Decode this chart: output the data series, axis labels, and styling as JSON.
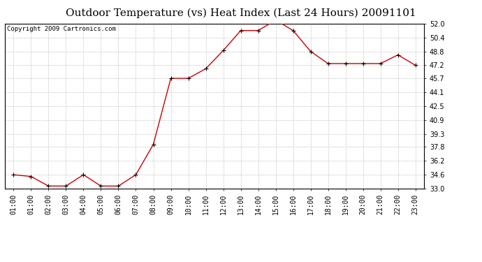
{
  "title": "Outdoor Temperature (vs) Heat Index (Last 24 Hours) 20091101",
  "copyright": "Copyright 2009 Cartronics.com",
  "x_labels": [
    "01:00",
    "01:00",
    "02:00",
    "03:00",
    "04:00",
    "05:00",
    "06:00",
    "07:00",
    "08:00",
    "09:00",
    "10:00",
    "11:00",
    "12:00",
    "13:00",
    "14:00",
    "15:00",
    "16:00",
    "17:00",
    "18:00",
    "19:00",
    "20:00",
    "21:00",
    "22:00",
    "23:00"
  ],
  "y_values": [
    34.6,
    34.4,
    33.3,
    33.3,
    34.6,
    33.3,
    33.3,
    34.6,
    38.1,
    45.7,
    45.7,
    46.8,
    48.9,
    51.2,
    51.2,
    52.4,
    51.2,
    48.8,
    47.4,
    47.4,
    47.4,
    47.4,
    48.4,
    47.2
  ],
  "line_color": "#cc0000",
  "marker_color": "#000000",
  "grid_color": "#c8c8c8",
  "background_color": "#ffffff",
  "ylim": [
    33.0,
    52.0
  ],
  "yticks": [
    33.0,
    34.6,
    36.2,
    37.8,
    39.3,
    40.9,
    42.5,
    44.1,
    45.7,
    47.2,
    48.8,
    50.4,
    52.0
  ],
  "title_fontsize": 11,
  "tick_fontsize": 7,
  "copyright_fontsize": 6.5
}
